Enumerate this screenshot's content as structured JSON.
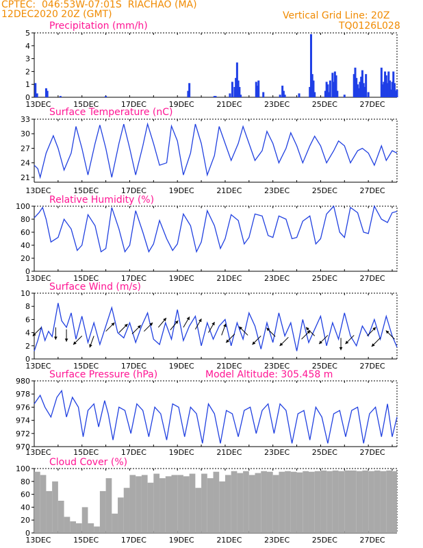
{
  "header": {
    "source_location": "CPTEC:  046:53W-07:01S  RIACHAO (MA)",
    "run_time": "12DEC2020 20Z (GMT)",
    "grid_note": "Vertical Grid Line: 20Z",
    "model_code": "TQ0126L028"
  },
  "colors": {
    "header": "#f08a00",
    "title": "#ff1493",
    "line": "#2040e0",
    "bar": "#1f3fe6",
    "cloud": "#a9a9a9"
  },
  "x_labels": [
    "13DEC",
    "15DEC",
    "17DEC",
    "19DEC",
    "21DEC",
    "23DEC",
    "25DEC",
    "27DEC"
  ],
  "chart_data": [
    {
      "id": "precip",
      "type": "bar",
      "title": "Precipitation (mm/h)",
      "ylim": [
        0,
        5
      ],
      "yticks": [
        0,
        1,
        2,
        3,
        4,
        5
      ],
      "x_unit": "days since 12DEC 20Z",
      "x": [
        0.05,
        0.12,
        0.5,
        0.55,
        1.1,
        3.0,
        6.45,
        6.5,
        7.55,
        7.6,
        8.2,
        8.3,
        8.4,
        8.45,
        8.5,
        8.55,
        8.6,
        8.65,
        9.3,
        9.35,
        9.4,
        9.6,
        10.3,
        10.4,
        10.45,
        10.5,
        11.1,
        11.55,
        11.6,
        11.65,
        11.7,
        11.75,
        12.2,
        12.25,
        12.3,
        12.35,
        12.4,
        12.5,
        12.55,
        12.6,
        12.65,
        12.7,
        13.0,
        13.4,
        13.45,
        13.5,
        13.55,
        13.6,
        13.65,
        13.7,
        13.75,
        13.8,
        13.85,
        13.9,
        14.0,
        14.55,
        14.6,
        14.65,
        14.7,
        14.75,
        14.8,
        14.85,
        14.9,
        14.95,
        15.0,
        15.05,
        15.1,
        15.15,
        15.2
      ],
      "values": [
        1.1,
        0.3,
        0.7,
        0.5,
        0.1,
        0.1,
        0.5,
        1.1,
        0.1,
        0.1,
        0.3,
        1.2,
        0.8,
        1.5,
        2.7,
        1.3,
        0.8,
        0.2,
        1.2,
        0.9,
        1.3,
        0.4,
        0.2,
        0.9,
        0.5,
        0.2,
        0.3,
        0.8,
        4.9,
        1.8,
        1.3,
        0.4,
        0.5,
        1.2,
        1.0,
        0.4,
        1.3,
        1.9,
        1.2,
        2.0,
        1.7,
        0.5,
        0.2,
        1.8,
        2.3,
        1.5,
        1.0,
        0.7,
        1.2,
        1.6,
        2.1,
        1.1,
        0.8,
        1.8,
        0.4,
        2.3,
        1.0,
        1.2,
        2.0,
        1.7,
        1.1,
        2.0,
        1.3,
        0.6,
        1.2,
        2.0,
        1.1,
        0.5,
        0.6
      ]
    },
    {
      "id": "temp",
      "type": "line",
      "title": "Surface Temperature (nC)",
      "ylim": [
        20,
        33
      ],
      "yticks": [
        21,
        24,
        27,
        30,
        33
      ],
      "x_unit": "days since 12DEC 20Z",
      "x": [
        0,
        0.15,
        0.25,
        0.5,
        0.8,
        1.0,
        1.25,
        1.55,
        1.75,
        2.0,
        2.25,
        2.55,
        2.75,
        3.0,
        3.25,
        3.55,
        3.75,
        4.0,
        4.25,
        4.55,
        4.75,
        5.0,
        5.25,
        5.55,
        5.75,
        6.0,
        6.25,
        6.55,
        6.75,
        7.0,
        7.25,
        7.55,
        7.75,
        8.0,
        8.25,
        8.55,
        8.75,
        9.0,
        9.25,
        9.55,
        9.75,
        10.0,
        10.25,
        10.55,
        10.75,
        11.0,
        11.25,
        11.55,
        11.75,
        12.0,
        12.25,
        12.55,
        12.75,
        13.0,
        13.25,
        13.55,
        13.75,
        14.0,
        14.25,
        14.55,
        14.75,
        15.0,
        15.2
      ],
      "values": [
        23.5,
        22.8,
        21.0,
        26.0,
        29.6,
        27.0,
        22.5,
        26.0,
        31.5,
        27.0,
        21.5,
        28.0,
        31.8,
        27.0,
        21.0,
        28.0,
        32.0,
        27.0,
        21.5,
        27.5,
        32.0,
        28.0,
        23.5,
        24.0,
        31.6,
        28.5,
        21.5,
        26.0,
        32.0,
        28.0,
        21.5,
        25.5,
        31.5,
        28.0,
        24.5,
        28.0,
        31.5,
        28.0,
        24.5,
        26.5,
        30.5,
        28.0,
        24.0,
        27.0,
        30.2,
        27.5,
        24.0,
        27.5,
        29.5,
        27.5,
        24.0,
        26.5,
        28.5,
        27.5,
        24.0,
        26.5,
        27.0,
        26.0,
        23.5,
        27.5,
        24.5,
        26.5,
        26.0
      ]
    },
    {
      "id": "rh",
      "type": "line",
      "title": "Relative Humidity (%)",
      "ylim": [
        0,
        100
      ],
      "yticks": [
        0,
        20,
        40,
        60,
        80,
        100
      ],
      "x_unit": "days since 12DEC 20Z",
      "x": [
        0,
        0.2,
        0.35,
        0.5,
        0.7,
        1.0,
        1.25,
        1.55,
        1.8,
        2.0,
        2.25,
        2.55,
        2.8,
        3.0,
        3.25,
        3.55,
        3.8,
        4.0,
        4.25,
        4.55,
        4.8,
        5.0,
        5.25,
        5.55,
        5.8,
        6.0,
        6.25,
        6.55,
        6.8,
        7.0,
        7.25,
        7.55,
        7.8,
        8.0,
        8.25,
        8.55,
        8.8,
        9.0,
        9.25,
        9.55,
        9.8,
        10.0,
        10.25,
        10.55,
        10.8,
        11.0,
        11.25,
        11.55,
        11.8,
        12.0,
        12.25,
        12.55,
        12.8,
        13.0,
        13.25,
        13.55,
        13.8,
        14.0,
        14.25,
        14.55,
        14.8,
        15.0,
        15.2
      ],
      "values": [
        82,
        90,
        98,
        80,
        45,
        52,
        80,
        65,
        32,
        40,
        87,
        70,
        30,
        35,
        98,
        65,
        30,
        40,
        93,
        60,
        30,
        42,
        78,
        50,
        32,
        42,
        88,
        70,
        30,
        45,
        93,
        70,
        35,
        50,
        87,
        78,
        42,
        52,
        88,
        85,
        55,
        52,
        85,
        80,
        50,
        52,
        77,
        85,
        42,
        50,
        88,
        100,
        60,
        52,
        98,
        90,
        60,
        58,
        100,
        80,
        75,
        90,
        92
      ]
    },
    {
      "id": "wind",
      "type": "line",
      "title": "Surface Wind (m/s)",
      "ylim": [
        0,
        10
      ],
      "yticks": [
        0,
        2,
        4,
        6,
        8,
        10
      ],
      "x_unit": "days since 12DEC 20Z",
      "x": [
        0,
        0.15,
        0.3,
        0.45,
        0.6,
        0.75,
        1.0,
        1.15,
        1.35,
        1.55,
        1.75,
        2.0,
        2.25,
        2.5,
        2.75,
        3.0,
        3.25,
        3.5,
        3.75,
        4.0,
        4.25,
        4.5,
        4.75,
        5.0,
        5.25,
        5.5,
        5.75,
        6.0,
        6.25,
        6.5,
        6.75,
        7.0,
        7.25,
        7.5,
        7.75,
        8.0,
        8.25,
        8.5,
        8.75,
        9.0,
        9.25,
        9.5,
        9.75,
        10.0,
        10.25,
        10.5,
        10.75,
        11.0,
        11.25,
        11.5,
        11.75,
        12.0,
        12.25,
        12.5,
        12.75,
        13.0,
        13.25,
        13.5,
        13.75,
        14.0,
        14.25,
        14.5,
        14.75,
        15.0,
        15.2
      ],
      "values": [
        1.2,
        2.8,
        4.8,
        2.8,
        4.2,
        3.4,
        8.5,
        5.8,
        4.8,
        7.0,
        3.0,
        6.5,
        2.5,
        5.5,
        2.2,
        5.0,
        7.8,
        4.0,
        3.2,
        5.5,
        2.5,
        5.0,
        7.0,
        3.0,
        2.2,
        5.5,
        3.0,
        7.5,
        2.8,
        5.0,
        6.5,
        2.0,
        5.5,
        3.0,
        5.0,
        6.0,
        2.0,
        5.5,
        3.0,
        7.0,
        5.0,
        1.5,
        5.5,
        2.5,
        7.0,
        3.5,
        5.5,
        1.2,
        6.0,
        2.5,
        4.5,
        6.5,
        2.0,
        5.5,
        3.0,
        7.0,
        3.5,
        2.0,
        5.0,
        3.5,
        6.0,
        3.0,
        6.5,
        3.5,
        1.8
      ]
    },
    {
      "id": "pressure",
      "type": "line",
      "title": "Surface Pressure (hPa)",
      "ylim": [
        970,
        980
      ],
      "yticks": [
        970,
        972,
        974,
        976,
        978,
        980
      ],
      "x_unit": "days since 12DEC 20Z",
      "x": [
        0,
        0.25,
        0.45,
        0.7,
        0.95,
        1.15,
        1.35,
        1.6,
        1.85,
        2.05,
        2.25,
        2.5,
        2.7,
        2.95,
        3.1,
        3.3,
        3.55,
        3.8,
        4.05,
        4.3,
        4.55,
        4.8,
        5.05,
        5.3,
        5.55,
        5.8,
        6.05,
        6.3,
        6.55,
        6.8,
        7.05,
        7.3,
        7.55,
        7.8,
        8.05,
        8.3,
        8.55,
        8.8,
        9.05,
        9.3,
        9.55,
        9.8,
        10.05,
        10.3,
        10.55,
        10.8,
        11.05,
        11.3,
        11.55,
        11.8,
        12.05,
        12.3,
        12.55,
        12.8,
        13.05,
        13.3,
        13.55,
        13.8,
        14.05,
        14.3,
        14.55,
        14.8,
        15.0,
        15.2
      ],
      "values": [
        976.5,
        977.8,
        976.0,
        974.5,
        977.5,
        978.5,
        974.5,
        977.5,
        976.0,
        971.5,
        975.5,
        976.5,
        973.0,
        977.0,
        975.0,
        971.0,
        976.0,
        975.5,
        972.0,
        976.5,
        975.5,
        971.5,
        976.0,
        975.0,
        971.0,
        976.5,
        976.0,
        971.5,
        976.0,
        975.0,
        970.5,
        976.5,
        975.0,
        970.5,
        975.5,
        975.0,
        971.5,
        975.5,
        976.0,
        972.0,
        975.5,
        976.5,
        972.0,
        976.5,
        975.5,
        970.5,
        975.0,
        975.5,
        971.0,
        976.0,
        974.5,
        970.5,
        975.0,
        975.5,
        971.5,
        975.5,
        976.0,
        970.5,
        975.0,
        976.0,
        971.5,
        976.5,
        971.5,
        974.5
      ]
    },
    {
      "id": "cloud",
      "type": "bar",
      "title": "Cloud Cover (%)",
      "ylim": [
        0,
        100
      ],
      "yticks": [
        0,
        20,
        40,
        60,
        80,
        100
      ],
      "x_unit": "days since 12DEC 20Z",
      "x": [
        0,
        0.25,
        0.5,
        0.75,
        1.0,
        1.25,
        1.5,
        1.75,
        2.0,
        2.25,
        2.5,
        2.75,
        3.0,
        3.25,
        3.5,
        3.75,
        4.0,
        4.25,
        4.5,
        4.75,
        5.0,
        5.25,
        5.5,
        5.75,
        6.0,
        6.25,
        6.5,
        6.75,
        7.0,
        7.25,
        7.5,
        7.75,
        8.0,
        8.25,
        8.5,
        8.75,
        9.0,
        9.25,
        9.5,
        9.75,
        10.0,
        10.25,
        10.5,
        10.75,
        11.0,
        11.25,
        11.5,
        11.75,
        12.0,
        12.25,
        12.5,
        12.75,
        13.0,
        13.25,
        13.5,
        13.75,
        14.0,
        14.25,
        14.5,
        14.75,
        15.0,
        15.2
      ],
      "values": [
        95,
        90,
        65,
        80,
        50,
        25,
        18,
        15,
        40,
        15,
        10,
        65,
        85,
        30,
        55,
        70,
        90,
        88,
        90,
        78,
        92,
        85,
        88,
        90,
        90,
        88,
        92,
        70,
        92,
        85,
        95,
        80,
        90,
        96,
        93,
        96,
        90,
        93,
        96,
        95,
        90,
        95,
        96,
        95,
        94,
        96,
        95,
        96,
        97,
        96,
        97,
        96,
        97,
        97,
        96,
        97,
        96,
        97,
        96,
        97,
        96,
        96
      ]
    }
  ],
  "wind_vectors": [
    {
      "x": 0.3,
      "speed": 4.8,
      "dir_deg": 45
    },
    {
      "x": 0.9,
      "speed": 4.8,
      "dir_deg": 90
    },
    {
      "x": 1.35,
      "speed": 4.5,
      "dir_deg": 90
    },
    {
      "x": 2.0,
      "speed": 3.5,
      "dir_deg": 45
    },
    {
      "x": 2.5,
      "speed": 3.5,
      "dir_deg": 70
    },
    {
      "x": 3.0,
      "speed": 4.2,
      "dir_deg": 225
    },
    {
      "x": 3.55,
      "speed": 4.0,
      "dir_deg": 225
    },
    {
      "x": 4.1,
      "speed": 3.8,
      "dir_deg": 225
    },
    {
      "x": 4.6,
      "speed": 4.2,
      "dir_deg": 225
    },
    {
      "x": 5.2,
      "speed": 4.8,
      "dir_deg": 230
    },
    {
      "x": 5.7,
      "speed": 4.4,
      "dir_deg": 230
    },
    {
      "x": 6.25,
      "speed": 4.8,
      "dir_deg": 240
    },
    {
      "x": 6.75,
      "speed": 4.5,
      "dir_deg": 240
    },
    {
      "x": 7.3,
      "speed": 4.0,
      "dir_deg": 240
    },
    {
      "x": 7.85,
      "speed": 3.6,
      "dir_deg": 250
    },
    {
      "x": 8.4,
      "speed": 3.8,
      "dir_deg": 45
    },
    {
      "x": 8.95,
      "speed": 3.6,
      "dir_deg": 315
    },
    {
      "x": 9.5,
      "speed": 3.5,
      "dir_deg": 45
    },
    {
      "x": 10.1,
      "speed": 3.4,
      "dir_deg": 315
    },
    {
      "x": 10.65,
      "speed": 3.3,
      "dir_deg": 45
    },
    {
      "x": 11.2,
      "speed": 3.0,
      "dir_deg": 225
    },
    {
      "x": 11.75,
      "speed": 3.5,
      "dir_deg": 315
    },
    {
      "x": 12.3,
      "speed": 3.6,
      "dir_deg": 45
    },
    {
      "x": 12.85,
      "speed": 3.2,
      "dir_deg": 90
    },
    {
      "x": 13.4,
      "speed": 3.6,
      "dir_deg": 45
    },
    {
      "x": 13.95,
      "speed": 3.5,
      "dir_deg": 225
    },
    {
      "x": 14.5,
      "speed": 3.2,
      "dir_deg": 45
    },
    {
      "x": 15.1,
      "speed": 3.0,
      "dir_deg": 315
    }
  ],
  "model_altitude": "Model Altitude: 305.458 m"
}
